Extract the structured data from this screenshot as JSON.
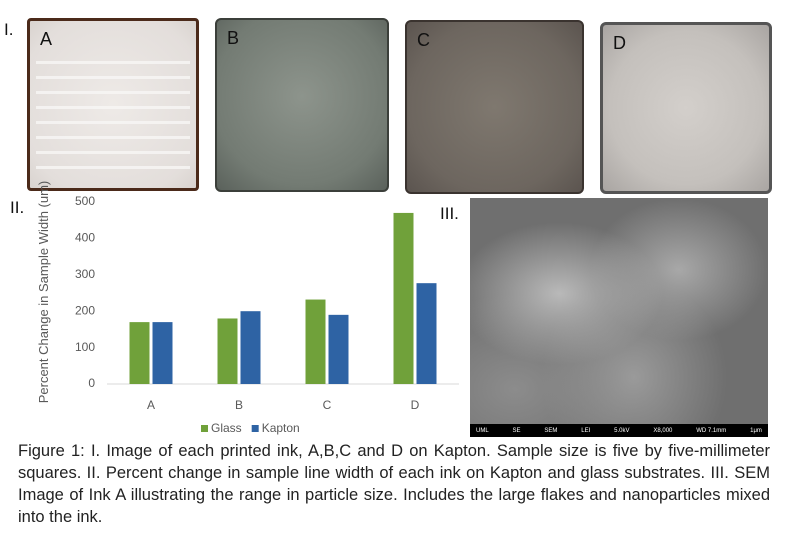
{
  "panels": {
    "photos_label": "I.",
    "chart_label": "II.",
    "sem_label": "III."
  },
  "photos": [
    {
      "label": "A"
    },
    {
      "label": "B"
    },
    {
      "label": "C"
    },
    {
      "label": "D"
    }
  ],
  "chart_data": {
    "type": "bar",
    "y_label": "Percent Change in Sample Width (um)",
    "categories": [
      "A",
      "B",
      "C",
      "D"
    ],
    "series": [
      {
        "name": "Glass",
        "color": "#70a13a",
        "values": [
          170,
          180,
          232,
          470
        ]
      },
      {
        "name": "Kapton",
        "color": "#2e63a4",
        "values": [
          170,
          200,
          190,
          277
        ]
      }
    ],
    "ylim": [
      0,
      500
    ],
    "yticks": [
      0,
      100,
      200,
      300,
      400,
      500
    ],
    "grid": false,
    "legend": "bottom"
  },
  "sem": {
    "footer": [
      "UML",
      "SE",
      "SEM",
      "LEI",
      "5.0kV",
      "X8,000",
      "WD 7.1mm",
      "1μm"
    ]
  },
  "caption": "Figure 1: I. Image of each printed ink, A,B,C and D on Kapton. Sample size is five by five-millimeter squares. II. Percent change in sample line width of each ink on Kapton and glass substrates. III. SEM Image of Ink A illustrating the range in particle size. Includes the large flakes and nanoparticles mixed into the ink."
}
